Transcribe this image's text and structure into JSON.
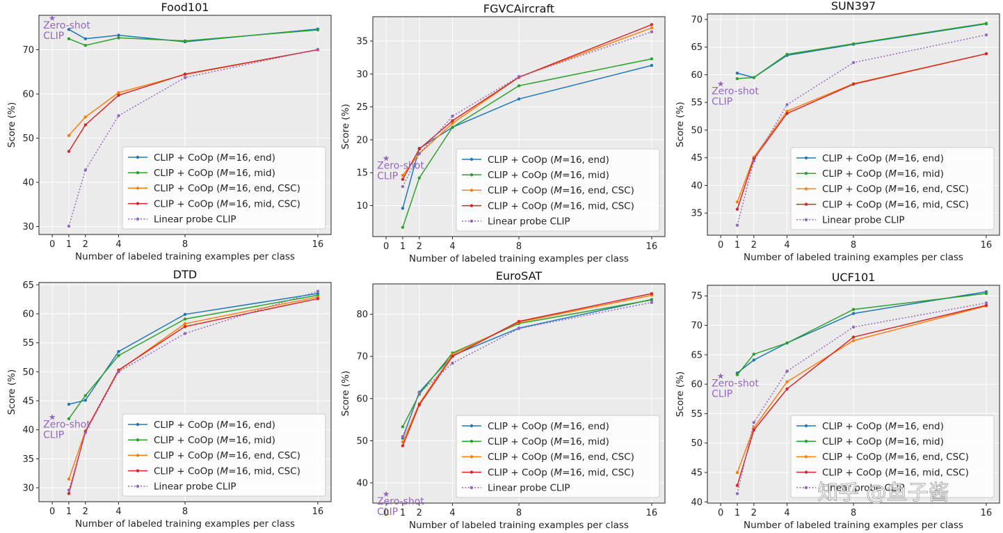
{
  "chart_data": [
    {
      "type": "line",
      "title": "Food101",
      "xlabel": "Number of labeled training examples per class",
      "ylabel": "Score (%)",
      "x": [
        1,
        2,
        4,
        8,
        16
      ],
      "xticks": [
        0,
        1,
        2,
        4,
        8,
        16
      ],
      "xlim": [
        -0.8,
        16.8
      ],
      "yticks": [
        30,
        40,
        50,
        60,
        70
      ],
      "ylim": [
        28.2,
        77.8
      ],
      "zero_shot": {
        "x": 0,
        "y": 77.3,
        "label": [
          "Zero-shot",
          "CLIP"
        ]
      },
      "legend_loc": "lower right",
      "series": [
        {
          "name": "CLIP + CoOp (M=16, end)",
          "values": [
            74.6,
            72.5,
            73.3,
            71.8,
            74.7
          ]
        },
        {
          "name": "CLIP + CoOp (M=16, mid)",
          "values": [
            72.5,
            71.0,
            72.7,
            72.0,
            74.5
          ]
        },
        {
          "name": "CLIP + CoOp (M=16, end, CSC)",
          "values": [
            50.6,
            54.8,
            60.3,
            64.4,
            70.0
          ]
        },
        {
          "name": "CLIP + CoOp (M=16, mid, CSC)",
          "values": [
            47.0,
            53.0,
            59.7,
            64.5,
            70.0
          ]
        },
        {
          "name": "Linear probe CLIP",
          "values": [
            30.1,
            42.8,
            55.1,
            63.7,
            70.1
          ]
        }
      ]
    },
    {
      "type": "line",
      "title": "FGVCAircraft",
      "xlabel": "Number of labeled training examples per class",
      "ylabel": "Score (%)",
      "x": [
        1,
        2,
        4,
        8,
        16
      ],
      "xticks": [
        0,
        1,
        2,
        4,
        8,
        16
      ],
      "xlim": [
        -0.8,
        16.8
      ],
      "yticks": [
        10,
        15,
        20,
        25,
        30,
        35
      ],
      "ylim": [
        5.3,
        38.7
      ],
      "zero_shot": {
        "x": 0,
        "y": 17.3,
        "label": [
          "Zero-shot",
          "CLIP"
        ]
      },
      "legend_loc": "lower right",
      "series": [
        {
          "name": "CLIP + CoOp (M=16, end)",
          "values": [
            9.6,
            18.7,
            21.9,
            26.2,
            31.3
          ]
        },
        {
          "name": "CLIP + CoOp (M=16, mid)",
          "values": [
            6.7,
            14.2,
            21.9,
            28.2,
            32.3
          ]
        },
        {
          "name": "CLIP + CoOp (M=16, end, CSC)",
          "values": [
            14.6,
            17.9,
            22.5,
            29.5,
            37.0
          ]
        },
        {
          "name": "CLIP + CoOp (M=16, mid, CSC)",
          "values": [
            14.0,
            18.6,
            22.9,
            29.5,
            37.5
          ]
        },
        {
          "name": "Linear probe CLIP",
          "values": [
            12.9,
            17.9,
            23.6,
            29.6,
            36.4
          ]
        }
      ]
    },
    {
      "type": "line",
      "title": "SUN397",
      "xlabel": "Number of labeled training examples per class",
      "ylabel": "Score (%)",
      "x": [
        1,
        2,
        4,
        8,
        16
      ],
      "xticks": [
        0,
        1,
        2,
        4,
        8,
        16
      ],
      "xlim": [
        -0.8,
        16.8
      ],
      "yticks": [
        35,
        40,
        45,
        50,
        55,
        60,
        65,
        70
      ],
      "ylim": [
        31.0,
        71.0
      ],
      "zero_shot": {
        "x": 0,
        "y": 58.5,
        "label": [
          "Zero-shot",
          "CLIP"
        ]
      },
      "legend_loc": "lower right",
      "series": [
        {
          "name": "CLIP + CoOp (M=16, end)",
          "values": [
            60.3,
            59.5,
            63.5,
            65.5,
            69.2
          ]
        },
        {
          "name": "CLIP + CoOp (M=16, mid)",
          "values": [
            59.3,
            59.5,
            63.7,
            65.6,
            69.3
          ]
        },
        {
          "name": "CLIP + CoOp (M=16, end, CSC)",
          "values": [
            37.0,
            45.1,
            53.4,
            58.4,
            63.8
          ]
        },
        {
          "name": "CLIP + CoOp (M=16, mid, CSC)",
          "values": [
            35.7,
            44.8,
            53.0,
            58.3,
            63.8
          ]
        },
        {
          "name": "Linear probe CLIP",
          "values": [
            32.8,
            44.4,
            54.6,
            62.2,
            67.2
          ]
        }
      ]
    },
    {
      "type": "line",
      "title": "DTD",
      "xlabel": "Number of labeled training examples per class",
      "ylabel": "Score (%)",
      "x": [
        1,
        2,
        4,
        8,
        16
      ],
      "xticks": [
        0,
        1,
        2,
        4,
        8,
        16
      ],
      "xlim": [
        -0.8,
        16.8
      ],
      "yticks": [
        30,
        35,
        40,
        45,
        50,
        55,
        60,
        65
      ],
      "ylim": [
        27.6,
        65.4
      ],
      "zero_shot": {
        "x": 0,
        "y": 42.3,
        "label": [
          "Zero-shot",
          "CLIP"
        ]
      },
      "legend_loc": "lower right",
      "series": [
        {
          "name": "CLIP + CoOp (M=16, end)",
          "values": [
            44.4,
            45.1,
            53.5,
            59.9,
            63.5
          ]
        },
        {
          "name": "CLIP + CoOp (M=16, mid)",
          "values": [
            41.9,
            45.9,
            52.8,
            59.1,
            63.2
          ]
        },
        {
          "name": "CLIP + CoOp (M=16, end, CSC)",
          "values": [
            31.5,
            39.8,
            50.2,
            58.3,
            62.9
          ]
        },
        {
          "name": "CLIP + CoOp (M=16, mid, CSC)",
          "values": [
            29.0,
            39.7,
            50.3,
            57.8,
            62.6
          ]
        },
        {
          "name": "Linear probe CLIP",
          "values": [
            29.6,
            39.5,
            50.0,
            56.6,
            63.9
          ]
        }
      ]
    },
    {
      "type": "line",
      "title": "EuroSAT",
      "xlabel": "Number of labeled training examples per class",
      "ylabel": "Score (%)",
      "x": [
        1,
        2,
        4,
        8,
        16
      ],
      "xticks": [
        0,
        1,
        2,
        4,
        8,
        16
      ],
      "xlim": [
        -0.8,
        16.8
      ],
      "yticks": [
        40,
        50,
        60,
        70,
        80
      ],
      "ylim": [
        35.2,
        87.2
      ],
      "zero_shot": {
        "x": 0,
        "y": 37.5,
        "label": [
          "Zero-shot",
          "CLIP"
        ]
      },
      "legend_loc": "lower right",
      "series": [
        {
          "name": "CLIP + CoOp (M=16, end)",
          "values": [
            50.6,
            61.5,
            70.2,
            76.7,
            83.5
          ]
        },
        {
          "name": "CLIP + CoOp (M=16, mid)",
          "values": [
            53.3,
            61.0,
            70.8,
            77.8,
            83.4
          ]
        },
        {
          "name": "CLIP + CoOp (M=16, end, CSC)",
          "values": [
            49.7,
            58.8,
            70.5,
            78.1,
            84.5
          ]
        },
        {
          "name": "CLIP + CoOp (M=16, mid, CSC)",
          "values": [
            48.8,
            58.5,
            70.0,
            78.3,
            84.9
          ]
        },
        {
          "name": "Linear probe CLIP",
          "values": [
            51.0,
            61.3,
            68.4,
            76.6,
            82.8
          ]
        }
      ]
    },
    {
      "type": "line",
      "title": "UCF101",
      "xlabel": "Number of labeled training examples per class",
      "ylabel": "Score (%)",
      "x": [
        1,
        2,
        4,
        8,
        16
      ],
      "xticks": [
        0,
        1,
        2,
        4,
        8,
        16
      ],
      "xlim": [
        -0.8,
        16.8
      ],
      "yticks": [
        40,
        45,
        50,
        55,
        60,
        65,
        70,
        75
      ],
      "ylim": [
        39.8,
        76.8
      ],
      "zero_shot": {
        "x": 0,
        "y": 61.5,
        "label": [
          "Zero-shot",
          "CLIP"
        ]
      },
      "legend_loc": "lower right",
      "series": [
        {
          "name": "CLIP + CoOp (M=16, end)",
          "values": [
            61.9,
            64.1,
            67.0,
            72.0,
            75.7
          ]
        },
        {
          "name": "CLIP + CoOp (M=16, mid)",
          "values": [
            61.6,
            65.1,
            67.0,
            72.7,
            75.4
          ]
        },
        {
          "name": "CLIP + CoOp (M=16, end, CSC)",
          "values": [
            45.0,
            52.6,
            60.4,
            67.4,
            73.3
          ]
        },
        {
          "name": "CLIP + CoOp (M=16, mid, CSC)",
          "values": [
            42.8,
            52.2,
            59.2,
            68.0,
            73.4
          ]
        },
        {
          "name": "Linear probe CLIP",
          "values": [
            41.4,
            53.5,
            62.2,
            69.7,
            73.8
          ]
        }
      ]
    }
  ],
  "series_colors": [
    "#1f77b4",
    "#2ca02c",
    "#ff7f0e",
    "#d62728",
    "#9467bd"
  ],
  "legend": [
    {
      "prefix": "CLIP + CoOp (",
      "italic": "M",
      "suffix": "=16, end)"
    },
    {
      "prefix": "CLIP + CoOp (",
      "italic": "M",
      "suffix": "=16, mid)"
    },
    {
      "prefix": "CLIP + CoOp (",
      "italic": "M",
      "suffix": "=16, end, CSC)"
    },
    {
      "prefix": "CLIP + CoOp (",
      "italic": "M",
      "suffix": "=16, mid, CSC)"
    },
    {
      "prefix": "Linear probe CLIP",
      "italic": "",
      "suffix": ""
    }
  ],
  "watermark": "知乎 @鱼子酱"
}
